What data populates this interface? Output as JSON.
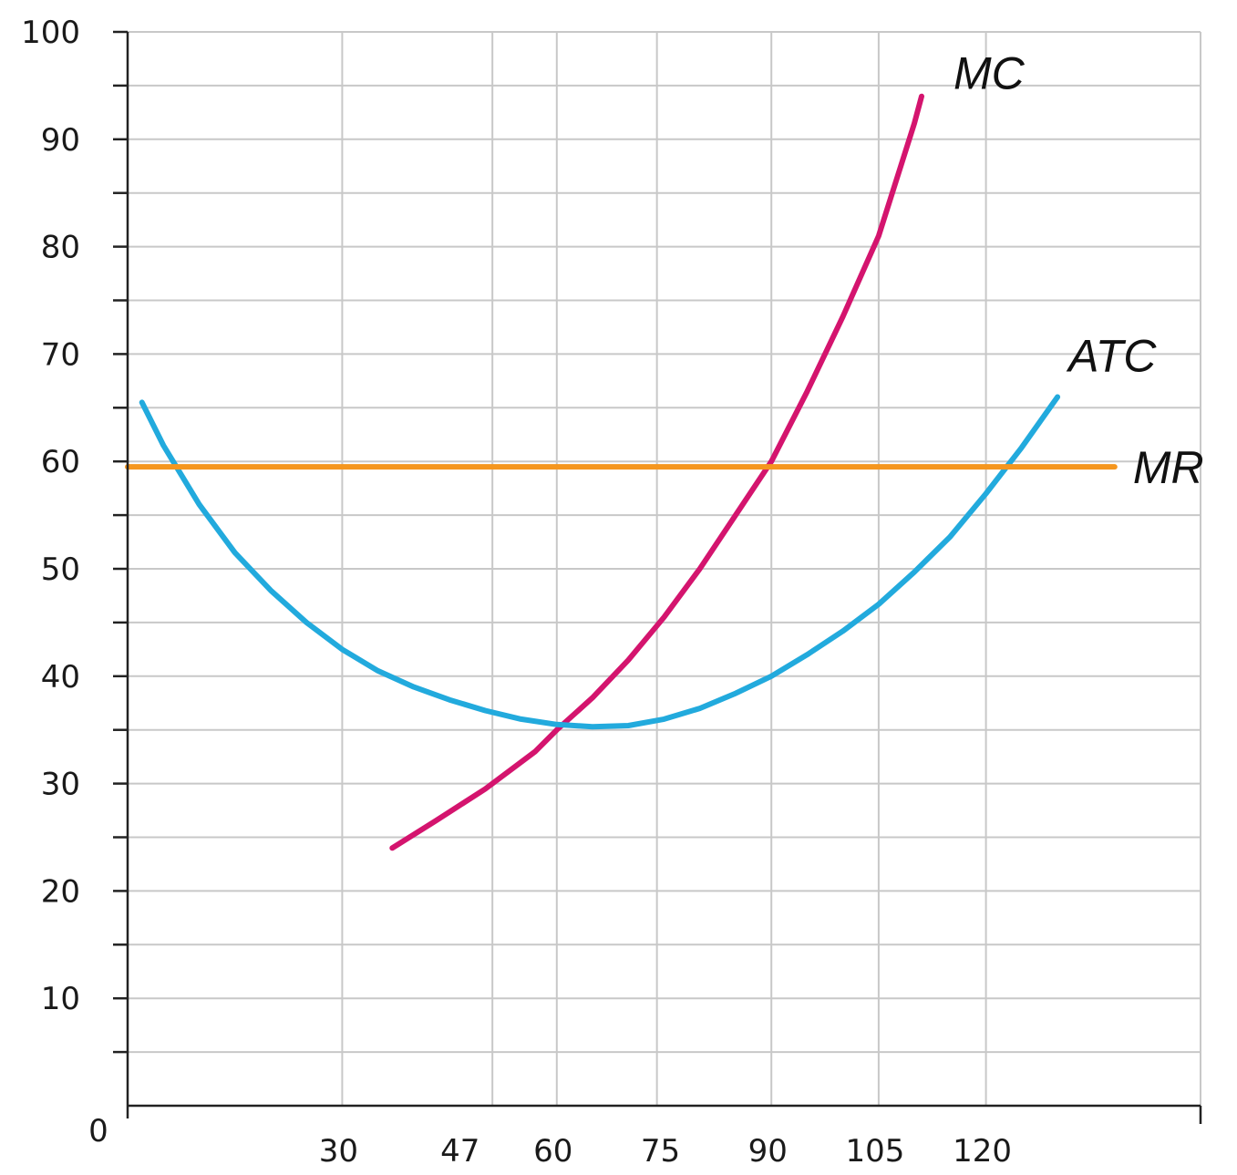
{
  "chart_data": {
    "type": "line",
    "title": "",
    "xlabel": "",
    "ylabel": "",
    "origin_label": "0",
    "xlim": [
      0,
      150
    ],
    "ylim": [
      0,
      100
    ],
    "x_ticks": [
      30,
      47,
      60,
      75,
      90,
      105,
      120
    ],
    "x_tick_labels": [
      "30",
      "47",
      "60",
      "75",
      "90",
      "105",
      "120"
    ],
    "x_grid": [
      30,
      51,
      60,
      74,
      90,
      105,
      120,
      150
    ],
    "y_ticks": [
      10,
      20,
      30,
      40,
      50,
      60,
      70,
      80,
      90,
      100
    ],
    "y_tick_labels": [
      "10",
      "20",
      "30",
      "40",
      "50",
      "60",
      "70",
      "80",
      "90",
      "100"
    ],
    "y_minor_step": 5,
    "grid": true,
    "series": [
      {
        "name": "MC",
        "color": "#d4146e",
        "x": [
          37,
          43,
          50,
          57,
          60,
          65,
          70,
          75,
          80,
          85,
          90,
          95,
          100,
          105,
          110,
          111
        ],
        "y": [
          24,
          26.5,
          29.5,
          33,
          35,
          38,
          41.5,
          45.5,
          50,
          55,
          60,
          66.5,
          73.5,
          81,
          91.5,
          94
        ]
      },
      {
        "name": "ATC",
        "color": "#22aadd",
        "x": [
          2,
          5,
          10,
          15,
          20,
          25,
          30,
          35,
          40,
          45,
          50,
          55,
          60,
          65,
          70,
          75,
          80,
          85,
          90,
          95,
          100,
          105,
          110,
          115,
          120,
          125,
          130
        ],
        "y": [
          65.5,
          61.5,
          56,
          51.5,
          48,
          45,
          42.5,
          40.5,
          39,
          37.8,
          36.8,
          36,
          35.5,
          35.3,
          35.4,
          36,
          37,
          38.4,
          40,
          42,
          44.2,
          46.7,
          49.7,
          53,
          57,
          61.3,
          66
        ]
      },
      {
        "name": "MR",
        "color": "#f5961e",
        "x": [
          0,
          138
        ],
        "y": [
          59.5,
          59.5
        ]
      }
    ]
  }
}
